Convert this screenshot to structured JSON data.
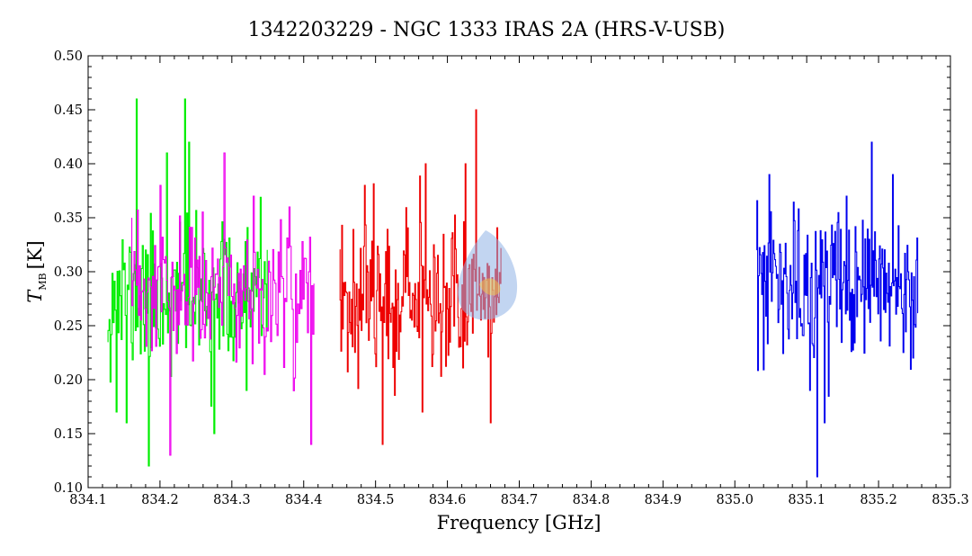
{
  "chart_data": {
    "type": "line",
    "title": "1342203229 - NGC 1333 IRAS 2A (HRS-V-USB)",
    "xlabel": "Frequency [GHz]",
    "ylabel": {
      "symbol": "T",
      "subscript": "MB",
      "unit": "[K]"
    },
    "xlim": [
      834.1,
      835.3
    ],
    "ylim": [
      0.1,
      0.5
    ],
    "xticks": [
      "834.1",
      "834.2",
      "834.3",
      "834.4",
      "834.5",
      "834.6",
      "834.7",
      "834.8",
      "834.9",
      "835.0",
      "835.1",
      "835.2",
      "835.3"
    ],
    "yticks": [
      "0.10",
      "0.15",
      "0.20",
      "0.25",
      "0.30",
      "0.35",
      "0.40",
      "0.45",
      "0.50"
    ],
    "grid": false,
    "legend": "none",
    "series": [
      {
        "color": "#00ee00",
        "x_range": [
          834.127,
          834.35
        ],
        "points": 160,
        "seed": 11,
        "mean": 0.275,
        "spread": 0.05,
        "extremes": [
          [
            834.14,
            0.17
          ],
          [
            834.153,
            0.16
          ],
          [
            834.168,
            0.46
          ],
          [
            834.185,
            0.12
          ],
          [
            834.21,
            0.41
          ],
          [
            834.235,
            0.46
          ],
          [
            834.24,
            0.42
          ],
          [
            834.275,
            0.15
          ],
          [
            834.32,
            0.19
          ]
        ]
      },
      {
        "color": "#ee00ee",
        "x_range": [
          834.16,
          834.415
        ],
        "points": 170,
        "seed": 23,
        "mean": 0.28,
        "spread": 0.05,
        "extremes": [
          [
            834.215,
            0.13
          ],
          [
            834.2,
            0.38
          ],
          [
            834.29,
            0.41
          ],
          [
            834.33,
            0.37
          ],
          [
            834.41,
            0.14
          ],
          [
            834.38,
            0.36
          ]
        ]
      },
      {
        "color": "#ee0000",
        "x_range": [
          834.45,
          834.675
        ],
        "points": 200,
        "seed": 37,
        "mean": 0.28,
        "spread": 0.05,
        "extremes": [
          [
            834.51,
            0.14
          ],
          [
            834.485,
            0.38
          ],
          [
            834.57,
            0.4
          ],
          [
            834.625,
            0.4
          ],
          [
            834.64,
            0.45
          ],
          [
            834.66,
            0.16
          ],
          [
            834.565,
            0.17
          ]
        ]
      },
      {
        "color": "#0000ee",
        "x_range": [
          835.03,
          835.255
        ],
        "points": 200,
        "seed": 53,
        "mean": 0.285,
        "spread": 0.05,
        "extremes": [
          [
            835.115,
            0.11
          ],
          [
            835.125,
            0.16
          ],
          [
            835.048,
            0.39
          ],
          [
            835.19,
            0.42
          ],
          [
            835.22,
            0.39
          ],
          [
            835.155,
            0.37
          ],
          [
            835.105,
            0.19
          ]
        ]
      }
    ]
  },
  "overlay": {
    "description_icon": "translucent-blob-marker",
    "color": "#8fb2e6",
    "center": [
      834.64,
      0.28
    ]
  }
}
